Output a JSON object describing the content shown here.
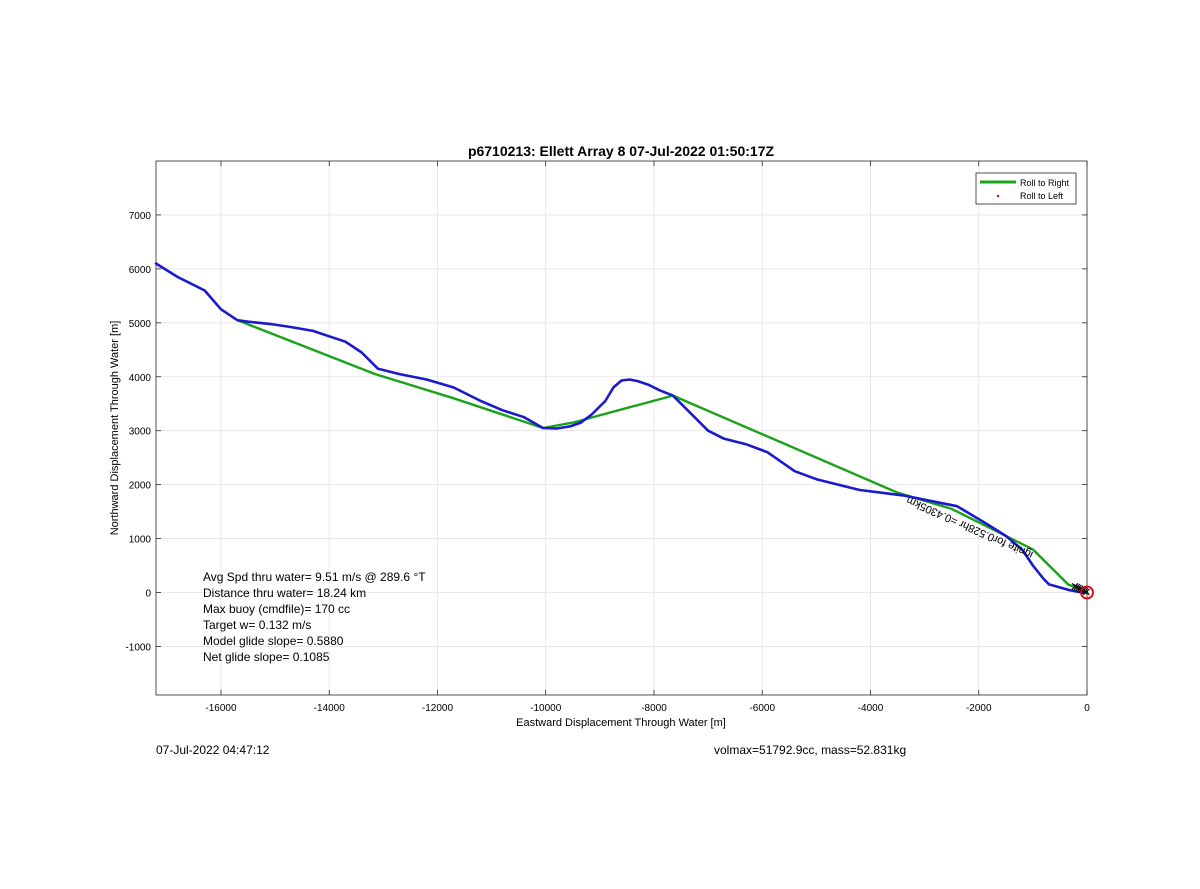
{
  "chart_data": {
    "type": "line",
    "title": "p6710213: Ellett Array 8 07-Jul-2022 01:50:17Z",
    "xlabel": "Eastward Displacement Through Water [m]",
    "ylabel": "Northward Displacement Through Water [m]",
    "xlim": [
      -17200,
      0
    ],
    "ylim": [
      -1900,
      8000
    ],
    "xticks": [
      -16000,
      -14000,
      -12000,
      -10000,
      -8000,
      -6000,
      -4000,
      -2000,
      0
    ],
    "yticks": [
      -1000,
      0,
      1000,
      2000,
      3000,
      4000,
      5000,
      6000,
      7000
    ],
    "grid": true,
    "legend_position": "top-right",
    "legend": [
      {
        "label": "Roll to Right",
        "color": "#1aa31a",
        "marker": "line"
      },
      {
        "label": "Roll to Left",
        "color": "#ff0000",
        "marker": "dot"
      }
    ],
    "series": [
      {
        "color": "#1aa31a",
        "x": [
          0,
          -350,
          -1000,
          -2500,
          -3500,
          -7650,
          -9500,
          -10050,
          -11700,
          -13150,
          -15700
        ],
        "y": [
          0,
          150,
          800,
          1550,
          1850,
          3650,
          3150,
          3050,
          3600,
          4050,
          5050
        ]
      },
      {
        "color": "#1a1acc",
        "x": [
          0,
          -100,
          -350,
          -700,
          -800,
          -1000,
          -1200,
          -1500,
          -1900,
          -2400,
          -2900,
          -3400,
          -3800,
          -4200,
          -4600,
          -5000,
          -5400,
          -5900,
          -6300,
          -6700,
          -7000,
          -7350,
          -7650,
          -7900,
          -8100,
          -8300,
          -8450,
          -8600,
          -8750,
          -8900,
          -9150,
          -9350,
          -9550,
          -9800,
          -10050,
          -10400,
          -10800,
          -11200,
          -11700,
          -12200,
          -12700,
          -13100,
          -13400,
          -13700,
          -14000,
          -14300,
          -14700,
          -15100,
          -15500,
          -15700,
          -16000,
          -16300,
          -16800,
          -17200
        ],
        "y": [
          0,
          0,
          50,
          150,
          250,
          500,
          800,
          1050,
          1300,
          1600,
          1700,
          1800,
          1850,
          1900,
          2000,
          2100,
          2250,
          2600,
          2750,
          2850,
          3000,
          3350,
          3650,
          3750,
          3850,
          3920,
          3950,
          3930,
          3800,
          3550,
          3300,
          3150,
          3080,
          3040,
          3050,
          3250,
          3380,
          3550,
          3800,
          3950,
          4050,
          4150,
          4450,
          4650,
          4750,
          4850,
          4920,
          4980,
          5020,
          5050,
          5250,
          5600,
          5850,
          6100
        ]
      }
    ],
    "surfacings": [
      {
        "x": -10,
        "y": 10
      },
      {
        "x": -40,
        "y": 25
      },
      {
        "x": -70,
        "y": 40
      },
      {
        "x": -100,
        "y": 55
      },
      {
        "x": -130,
        "y": 70
      },
      {
        "x": -160,
        "y": 85
      },
      {
        "x": -190,
        "y": 100
      },
      {
        "x": -220,
        "y": 115
      }
    ],
    "end_marker": {
      "x": 0,
      "y": 0
    },
    "rotated_label": {
      "text": "ignite for0.528hr =0.4305km",
      "x": -3300,
      "y": 1780
    },
    "stats": [
      "Avg Spd thru water=  9.51 m/s @ 289.6 °T",
      "Distance thru water= 18.24 km",
      "Max buoy (cmdfile)= 170 cc",
      "Target w= 0.132 m/s",
      "Model glide slope= 0.5880",
      "Net glide slope= 0.1085"
    ]
  },
  "footer": {
    "left": "07-Jul-2022 04:47:12",
    "right": "volmax=51792.9cc, mass=52.831kg"
  }
}
